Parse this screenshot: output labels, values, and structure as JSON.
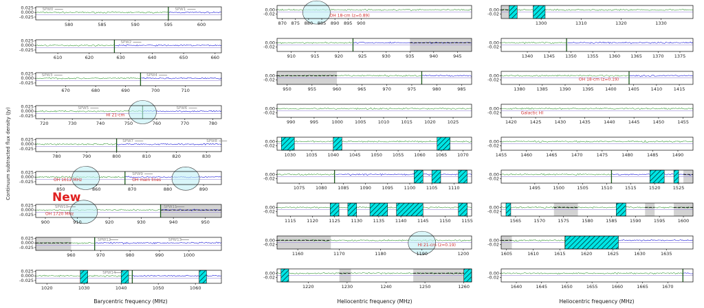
{
  "ylabel": "Continuum subtracted flux density (Jy)",
  "new_label": "New",
  "colors": {
    "green": "#3a9a3a",
    "blue": "#1c1cd8",
    "lavender": "#9a8ad8",
    "grey": "#d3d3d3",
    "cyan": "#00e5e5",
    "annot": "#d03030",
    "circle": "#bff0f5"
  },
  "columns": [
    {
      "xlabel": "Barycentric frequency (MHz)",
      "panels": [
        {
          "xlim": [
            575,
            603
          ],
          "ylim": [
            -0.04,
            0.03
          ],
          "yticks": [
            "0.025",
            "0.000",
            "-0.025"
          ],
          "xticks": [
            580,
            585,
            590,
            595,
            600
          ],
          "split": 595,
          "spw": [
            {
              "label": "SPW0",
              "x": 576
            },
            {
              "label": "SPW1",
              "x": 596
            }
          ]
        },
        {
          "xlim": [
            603,
            662
          ],
          "ylim": [
            -0.04,
            0.03
          ],
          "yticks": [
            "0.025",
            "0.000",
            "-0.025"
          ],
          "xticks": [
            610,
            620,
            630,
            640,
            650,
            660
          ],
          "split": 628,
          "spw": [
            {
              "label": "SPW2",
              "x": 630
            }
          ]
        },
        {
          "xlim": [
            660,
            722
          ],
          "ylim": [
            -0.04,
            0.03
          ],
          "yticks": [
            "0.025",
            "0.000",
            "-0.025"
          ],
          "xticks": [
            670,
            680,
            690,
            700,
            710
          ],
          "split": 695,
          "spw": [
            {
              "label": "SPW3",
              "x": 662
            },
            {
              "label": "SPW4",
              "x": 697
            }
          ]
        },
        {
          "xlim": [
            717,
            783
          ],
          "ylim": [
            -0.04,
            0.03
          ],
          "yticks": [
            "0.025",
            "0.000",
            "-0.025"
          ],
          "xticks": [
            720,
            730,
            740,
            750,
            760,
            770,
            780
          ],
          "split": 755,
          "spw": [
            {
              "label": "SPW5",
              "x": 732
            },
            {
              "label": "SPW6",
              "x": 767
            }
          ],
          "ann": [
            {
              "text": "HI 21-cm",
              "x": 742,
              "y": -0.028
            }
          ],
          "circle": [
            {
              "x": 755,
              "y": -0.005
            }
          ]
        },
        {
          "xlim": [
            773,
            835
          ],
          "ylim": [
            -0.04,
            0.03
          ],
          "yticks": [
            "0.025",
            "0.000",
            "-0.025"
          ],
          "xticks": [
            780,
            790,
            800,
            810,
            820,
            830
          ],
          "split": 800,
          "spw": [
            {
              "label": "SPW7",
              "x": 802
            },
            {
              "label": "SPW8",
              "x": 830
            }
          ]
        },
        {
          "xlim": [
            843,
            895
          ],
          "ylim": [
            -0.04,
            0.03
          ],
          "yticks": [
            "0.025",
            "0.000",
            "-0.025"
          ],
          "xticks": [
            850,
            860,
            870,
            880,
            890
          ],
          "split": 868,
          "spw": [
            {
              "label": "SPW9",
              "x": 870
            }
          ],
          "ann": [
            {
              "text": "OH 1612 MHz",
              "x": 848,
              "y": -0.022
            },
            {
              "text": "OH main lines",
              "x": 870,
              "y": -0.022
            }
          ],
          "circle": [
            {
              "x": 857,
              "y": -0.005
            },
            {
              "x": 885,
              "y": -0.008
            }
          ]
        },
        {
          "xlim": [
            897,
            955
          ],
          "ylim": [
            -0.04,
            0.03
          ],
          "yticks": [
            "0.025",
            "0.000",
            "-0.025"
          ],
          "xticks": [
            900,
            910,
            920,
            930,
            940,
            950
          ],
          "split": 936,
          "grey": [
            [
              936,
              955
            ]
          ],
          "spw": [
            {
              "label": "SPW10",
              "x": 903
            },
            {
              "label": "SPW11",
              "x": 937
            }
          ],
          "ann": [
            {
              "text": "OH 1720 MHz",
              "x": 900,
              "y": -0.028
            }
          ],
          "circle": [
            {
              "x": 912,
              "y": -0.01
            }
          ]
        },
        {
          "xlim": [
            948,
            1011
          ],
          "ylim": [
            -0.04,
            0.03
          ],
          "yticks": [
            "0.025",
            "0.000",
            "-0.025"
          ],
          "xticks": [
            960,
            970,
            980,
            990,
            1000
          ],
          "split": 968,
          "grey": [
            [
              948,
              960
            ]
          ],
          "spw": [
            {
              "label": "SPW12",
              "x": 969
            },
            {
              "label": "SPW13",
              "x": 993
            }
          ]
        },
        {
          "xlim": [
            1017,
            1067
          ],
          "ylim": [
            -0.04,
            0.03
          ],
          "yticks": [
            "0.025",
            "0.000",
            "-0.025"
          ],
          "xticks": [
            1020,
            1030,
            1040,
            1050,
            1060
          ],
          "split": 1043,
          "hatch": [
            [
              1029,
              1031
            ],
            [
              1040,
              1042
            ],
            [
              1061,
              1063
            ]
          ],
          "spw": [
            {
              "label": "SPW14",
              "x": 1035
            }
          ]
        }
      ]
    },
    {
      "xlabel": "Heliocentric frequency (MHz)",
      "panels": [
        {
          "xlim": [
            868,
            942
          ],
          "ylim": [
            -0.04,
            0.02
          ],
          "yticks": [
            "0.00",
            "-0.02"
          ],
          "xticks": [
            870,
            875,
            880,
            885,
            890,
            895,
            900
          ],
          "ann": [
            {
              "text": "OH 18-cm (z=0.89)",
              "x": 888,
              "y": -0.032
            }
          ],
          "circle": [
            {
              "x": 883,
              "y": -0.012
            }
          ]
        },
        {
          "xlim": [
            907,
            948
          ],
          "ylim": [
            -0.04,
            0.02
          ],
          "yticks": [
            "0.00",
            "-0.02"
          ],
          "xticks": [
            910,
            915,
            920,
            925,
            930,
            935,
            940,
            945
          ],
          "split": 923,
          "grey": [
            [
              935,
              948
            ]
          ]
        },
        {
          "xlim": [
            948,
            987
          ],
          "ylim": [
            -0.04,
            0.02
          ],
          "yticks": [
            "0.00",
            "-0.02"
          ],
          "xticks": [
            950,
            955,
            960,
            965,
            970,
            975,
            980,
            985
          ],
          "split": 977,
          "grey": [
            [
              948,
              960
            ]
          ]
        },
        {
          "xlim": [
            987,
            1029
          ],
          "ylim": [
            -0.04,
            0.02
          ],
          "yticks": [
            "0.00",
            "-0.02"
          ],
          "xticks": [
            990,
            995,
            1000,
            1005,
            1010,
            1015,
            1020,
            1025
          ]
        },
        {
          "xlim": [
            1027,
            1072
          ],
          "ylim": [
            -0.04,
            0.02
          ],
          "yticks": [
            "0.00",
            "-0.02"
          ],
          "xticks": [
            1030,
            1035,
            1040,
            1045,
            1050,
            1055,
            1060,
            1065,
            1070
          ],
          "hatch": [
            [
              1028,
              1031
            ],
            [
              1040,
              1042
            ],
            [
              1064,
              1067
            ]
          ]
        },
        {
          "xlim": [
            1070,
            1114
          ],
          "ylim": [
            -0.04,
            0.02
          ],
          "yticks": [
            "0.00",
            "-0.02"
          ],
          "xticks": [
            1075,
            1080,
            1085,
            1090,
            1095,
            1100,
            1105,
            1110
          ],
          "split": 1083,
          "hatch": [
            [
              1101,
              1103
            ],
            [
              1105,
              1107
            ],
            [
              1111,
              1113
            ]
          ]
        },
        {
          "xlim": [
            1112,
            1156
          ],
          "ylim": [
            -0.04,
            0.02
          ],
          "yticks": [
            "0.00",
            "-0.02"
          ],
          "xticks": [
            1115,
            1120,
            1125,
            1130,
            1135,
            1140,
            1145,
            1150,
            1155
          ],
          "hatch": [
            [
              1124,
              1126
            ],
            [
              1128,
              1130
            ],
            [
              1133,
              1137
            ],
            [
              1139,
              1145
            ],
            [
              1153,
              1155
            ]
          ]
        },
        {
          "xlim": [
            1155,
            1202
          ],
          "ylim": [
            -0.04,
            0.02
          ],
          "yticks": [
            "0.00",
            "-0.02"
          ],
          "xticks": [
            1160,
            1170,
            1180,
            1190,
            1200
          ],
          "grey": [
            [
              1155,
              1168
            ]
          ],
          "ann": [
            {
              "text": "HI 21-cm (z=0.19)",
              "x": 1189,
              "y": -0.028
            }
          ],
          "circle": [
            {
              "x": 1190,
              "y": -0.012
            }
          ]
        },
        {
          "xlim": [
            1212,
            1262
          ],
          "ylim": [
            -0.04,
            0.02
          ],
          "yticks": [
            "0.00",
            "-0.02"
          ],
          "xticks": [
            1220,
            1230,
            1240,
            1250,
            1260
          ],
          "grey": [
            [
              1228,
              1231
            ],
            [
              1247,
              1262
            ]
          ],
          "hatch": [
            [
              1213,
              1215
            ],
            [
              1260,
              1262
            ]
          ]
        }
      ]
    },
    {
      "xlabel": "Heliocentric frequency (MHz)",
      "panels": [
        {
          "xlim": [
            1290,
            1338
          ],
          "ylim": [
            -0.04,
            0.02
          ],
          "yticks": [
            "0.00",
            "-0.02"
          ],
          "xticks": [
            1300,
            1310,
            1320,
            1330
          ],
          "grey": [
            [
              1290,
              1292
            ]
          ],
          "hatch": [
            [
              1292,
              1294
            ],
            [
              1298,
              1301
            ]
          ]
        },
        {
          "xlim": [
            1334,
            1378
          ],
          "ylim": [
            -0.04,
            0.02
          ],
          "yticks": [
            "0.00",
            "-0.02"
          ],
          "xticks": [
            1340,
            1345,
            1350,
            1355,
            1360,
            1365,
            1370,
            1375
          ],
          "split": 1349
        },
        {
          "xlim": [
            1376,
            1418
          ],
          "ylim": [
            -0.04,
            0.02
          ],
          "yticks": [
            "0.00",
            "-0.02"
          ],
          "xticks": [
            1380,
            1385,
            1390,
            1395,
            1400,
            1405,
            1410,
            1415
          ],
          "split": 1404,
          "ann": [
            {
              "text": "OH 18-cm (z=0.19)",
              "x": 1393,
              "y": -0.022
            }
          ]
        },
        {
          "xlim": [
            1418,
            1457
          ],
          "ylim": [
            -0.04,
            0.02
          ],
          "yticks": [
            "0.00",
            "-0.02"
          ],
          "xticks": [
            1420,
            1425,
            1430,
            1435,
            1440,
            1445,
            1450,
            1455
          ],
          "ann": [
            {
              "text": "Galactic HI",
              "x": 1422,
              "y": -0.025
            }
          ]
        },
        {
          "xlim": [
            1455,
            1493
          ],
          "ylim": [
            -0.04,
            0.02
          ],
          "yticks": [
            "0.00",
            "-0.02"
          ],
          "xticks": [
            1455,
            1460,
            1465,
            1470,
            1475,
            1480,
            1485,
            1490
          ]
        },
        {
          "xlim": [
            1488,
            1528
          ],
          "ylim": [
            -0.04,
            0.02
          ],
          "yticks": [
            "0.00",
            "-0.02"
          ],
          "xticks": [
            1495,
            1500,
            1505,
            1510,
            1515,
            1520,
            1525
          ],
          "split": 1511,
          "grey": [
            [
              1526,
              1528
            ]
          ],
          "hatch": [
            [
              1519,
              1522
            ],
            [
              1524,
              1525
            ]
          ]
        },
        {
          "xlim": [
            1562,
            1602
          ],
          "ylim": [
            -0.04,
            0.02
          ],
          "yticks": [
            "0.00",
            "-0.02"
          ],
          "xticks": [
            1565,
            1570,
            1575,
            1580,
            1585,
            1590,
            1595,
            1600
          ],
          "grey": [
            [
              1573,
              1578
            ],
            [
              1592,
              1594
            ],
            [
              1598,
              1602
            ]
          ],
          "hatch": [
            [
              1563,
              1564
            ],
            [
              1586,
              1588
            ]
          ]
        },
        {
          "xlim": [
            1604,
            1640
          ],
          "ylim": [
            -0.04,
            0.02
          ],
          "yticks": [
            "0.00",
            "-0.02"
          ],
          "xticks": [
            1605,
            1610,
            1615,
            1620,
            1625,
            1630,
            1635
          ],
          "split": 1616,
          "grey": [
            [
              1604,
              1606
            ]
          ],
          "hatch": [
            [
              1616,
              1626
            ]
          ]
        },
        {
          "xlim": [
            1637,
            1675
          ],
          "ylim": [
            -0.04,
            0.02
          ],
          "yticks": [
            "0.00",
            "-0.02"
          ],
          "xticks": [
            1640,
            1645,
            1650,
            1655,
            1660,
            1665,
            1670
          ],
          "split": 1673
        }
      ]
    }
  ]
}
